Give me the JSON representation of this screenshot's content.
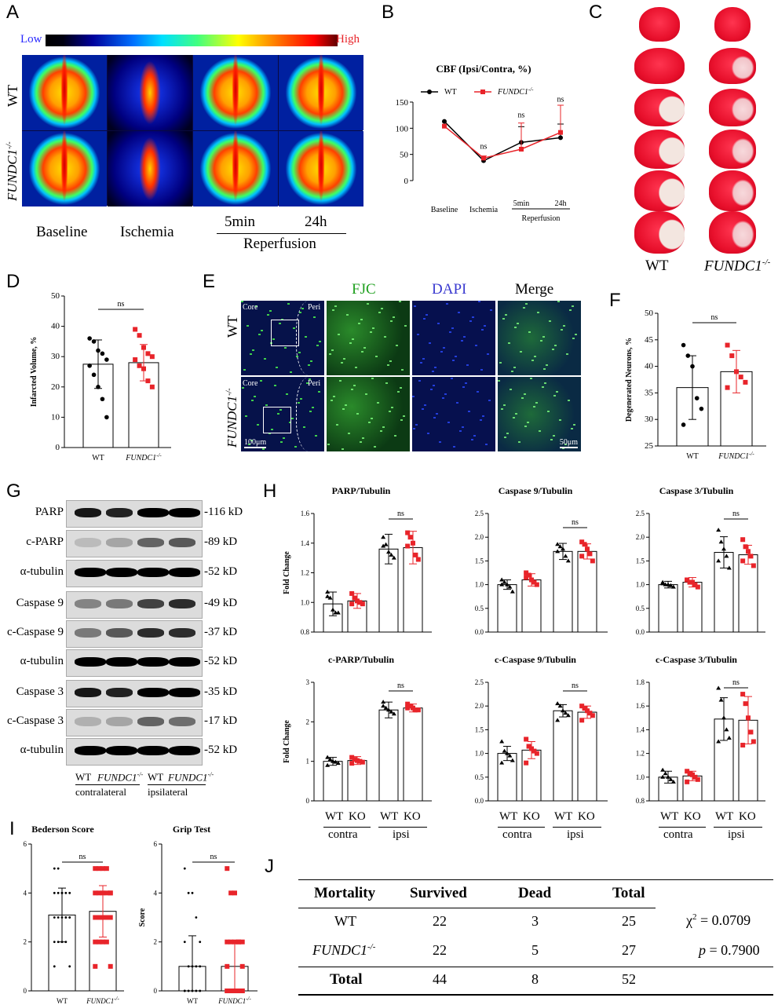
{
  "labels": {
    "A": "A",
    "B": "B",
    "C": "C",
    "D": "D",
    "E": "E",
    "F": "F",
    "G": "G",
    "H": "H",
    "I": "I",
    "J": "J"
  },
  "colors": {
    "wt": "#000000",
    "ko": "#e8242a",
    "table_rule": "#000000"
  },
  "panelA": {
    "low": "Low",
    "high": "High",
    "row_labels": [
      "WT",
      "FUNDC1"
    ],
    "row_sup": "-/-",
    "col_labels": [
      "Baseline",
      "Ischemia",
      "5min",
      "24h"
    ],
    "group_label": "Reperfusion"
  },
  "panelC": {
    "labels": [
      "WT",
      "FUNDC1"
    ],
    "sup": "-/-"
  },
  "panelE": {
    "headers": [
      "FJC",
      "DAPI",
      "Merge"
    ],
    "row_labels": [
      "WT",
      "FUNDC1"
    ],
    "row_sup": "-/-",
    "core": "Core",
    "peri": "Peri",
    "scale_left": "100μm",
    "scale_right": "50μm"
  },
  "panelG": {
    "bands": [
      {
        "name": "PARP",
        "kd": "-116 kD"
      },
      {
        "name": "c-PARP",
        "kd": "-89 kD"
      },
      {
        "name": "α-tubulin",
        "kd": "-52 kD"
      },
      {
        "name": "Caspase 9",
        "kd": "-49 kD"
      },
      {
        "name": "c-Caspase 9",
        "kd": "-37 kD"
      },
      {
        "name": "α-tubulin",
        "kd": "-52 kD"
      },
      {
        "name": "Caspase 3",
        "kd": "-35 kD"
      },
      {
        "name": "c-Caspase 3",
        "kd": "-17 kD"
      },
      {
        "name": "α-tubulin",
        "kd": "-52 kD"
      }
    ],
    "lane_labels": [
      "WT",
      "FUNDC1",
      "WT",
      "FUNDC1"
    ],
    "lane_sup": "-/-",
    "group_labels": [
      "contralateral",
      "ipsilateral"
    ]
  },
  "panelJ": {
    "header": [
      "Mortality",
      "Survived",
      "Dead",
      "Total"
    ],
    "rows": [
      {
        "label": "WT",
        "survived": "22",
        "dead": "3",
        "total": "25"
      },
      {
        "label": "FUNDC1",
        "survived": "22",
        "dead": "5",
        "total": "27"
      }
    ],
    "row_sup": "-/-",
    "total": {
      "label": "Total",
      "survived": "44",
      "dead": "8",
      "total": "52"
    },
    "chi_label": "χ",
    "chi_value": "= 0.0709",
    "p_label": "p",
    "p_value": "= 0.7900"
  },
  "chart_data": [
    {
      "id": "B",
      "type": "line",
      "title": "CBF (Ipsi/Contra, %)",
      "categories": [
        "Baseline",
        "Ischemia",
        "5min",
        "24h"
      ],
      "group_label": "Reperfusion",
      "ylim": [
        0,
        150
      ],
      "yticks": [
        0,
        50,
        100,
        150
      ],
      "series": [
        {
          "name": "WT",
          "values": [
            113,
            38,
            73,
            82
          ],
          "err": [
            0,
            0,
            30,
            26
          ]
        },
        {
          "name": "FUNDC1",
          "values": [
            104,
            43,
            60,
            92
          ],
          "err": [
            0,
            4,
            50,
            52
          ]
        }
      ],
      "annotations": [
        "ns",
        "ns",
        "ns"
      ]
    },
    {
      "id": "D",
      "type": "bar",
      "ylabel": "Infarcted Volume, %",
      "categories": [
        "WT",
        "FUNDC1"
      ],
      "ylim": [
        0,
        50
      ],
      "yticks": [
        0,
        10,
        20,
        30,
        40,
        50
      ],
      "values": [
        27.5,
        28
      ],
      "err": [
        8,
        6
      ],
      "points": [
        [
          36,
          35,
          32,
          31,
          29,
          27,
          24,
          20,
          16,
          10
        ],
        [
          39,
          37,
          33,
          31,
          30,
          29,
          27,
          26,
          22,
          20
        ]
      ],
      "annotation": "ns"
    },
    {
      "id": "F",
      "type": "bar",
      "ylabel": "Degenerated Neurons, %",
      "categories": [
        "WT",
        "FUNDC1"
      ],
      "ylim": [
        25,
        50
      ],
      "yticks": [
        25,
        30,
        35,
        40,
        45,
        50
      ],
      "values": [
        36,
        39
      ],
      "err": [
        6,
        4
      ],
      "points": [
        [
          44,
          42,
          40,
          34,
          32,
          29
        ],
        [
          44,
          42,
          39,
          38,
          37,
          36
        ]
      ],
      "annotation": "ns"
    },
    {
      "id": "H1",
      "type": "bar",
      "title": "PARP/Tubulin",
      "ylabel": "Fold Change",
      "ylim": [
        0.8,
        1.6
      ],
      "yticks": [
        0.8,
        1.0,
        1.2,
        1.4,
        1.6
      ],
      "values": [
        0.99,
        1.01,
        1.36,
        1.37
      ],
      "err": [
        0.08,
        0.05,
        0.1,
        0.11
      ],
      "points": [
        [
          1.07,
          1.03,
          0.95,
          0.93,
          0.93,
          1.04
        ],
        [
          1.06,
          1.03,
          1.01,
          1.0,
          0.99,
          0.99
        ],
        [
          1.44,
          1.39,
          1.34,
          1.32,
          1.3,
          1.38
        ],
        [
          1.47,
          1.44,
          1.4,
          1.32,
          1.29,
          1.38
        ]
      ],
      "annotation": "ns"
    },
    {
      "id": "H2",
      "type": "bar",
      "title": "Caspase 9/Tubulin",
      "ylim": [
        0,
        2.5
      ],
      "yticks": [
        0.0,
        0.5,
        1.0,
        1.5,
        2.0,
        2.5
      ],
      "values": [
        1.0,
        1.1,
        1.7,
        1.7
      ],
      "err": [
        0.1,
        0.13,
        0.17,
        0.16
      ],
      "points": [
        [
          1.1,
          1.05,
          1.0,
          0.95,
          0.85,
          1.0
        ],
        [
          1.25,
          1.2,
          1.1,
          1.05,
          1.0,
          1.15
        ],
        [
          1.85,
          1.8,
          1.75,
          1.6,
          1.5,
          1.7
        ],
        [
          1.9,
          1.85,
          1.75,
          1.65,
          1.5,
          1.6
        ]
      ],
      "annotation": "ns"
    },
    {
      "id": "H3",
      "type": "bar",
      "title": "Caspase 3/Tubulin",
      "ylim": [
        0,
        2.5
      ],
      "yticks": [
        0.0,
        0.5,
        1.0,
        1.5,
        2.0,
        2.5
      ],
      "values": [
        1.0,
        1.05,
        1.68,
        1.63
      ],
      "err": [
        0.07,
        0.1,
        0.33,
        0.2
      ],
      "points": [
        [
          1.05,
          1.0,
          1.0,
          0.98,
          0.95,
          1.02
        ],
        [
          1.1,
          1.05,
          1.05,
          1.0,
          0.95,
          1.1
        ],
        [
          2.15,
          1.9,
          1.75,
          1.6,
          1.35,
          1.5
        ],
        [
          1.95,
          1.8,
          1.7,
          1.6,
          1.4,
          1.5
        ]
      ],
      "annotation": "ns"
    },
    {
      "id": "H4",
      "type": "bar",
      "title": "c-PARP/Tubulin",
      "ylabel": "Fold Change",
      "ylim": [
        0,
        3
      ],
      "yticks": [
        0,
        1,
        2,
        3
      ],
      "values": [
        1.0,
        1.02,
        2.3,
        2.35
      ],
      "err": [
        0.1,
        0.1,
        0.2,
        0.1
      ],
      "points": [
        [
          1.1,
          1.05,
          1.0,
          0.98,
          0.95,
          0.9
        ],
        [
          1.1,
          1.05,
          1.02,
          1.0,
          0.98,
          0.95
        ],
        [
          2.5,
          2.35,
          2.3,
          2.25,
          2.2,
          2.4
        ],
        [
          2.45,
          2.4,
          2.35,
          2.3,
          2.3,
          2.35
        ]
      ],
      "annotation": "ns"
    },
    {
      "id": "H5",
      "type": "bar",
      "title": "c-Caspase 9/Tubulin",
      "ylim": [
        0,
        2.5
      ],
      "yticks": [
        0.0,
        0.5,
        1.0,
        1.5,
        2.0,
        2.5
      ],
      "values": [
        1.0,
        1.07,
        1.9,
        1.87
      ],
      "err": [
        0.15,
        0.18,
        0.13,
        0.13
      ],
      "points": [
        [
          1.25,
          1.05,
          1.0,
          0.95,
          0.85,
          0.8
        ],
        [
          1.3,
          1.15,
          1.1,
          1.05,
          1.0,
          0.8
        ],
        [
          2.05,
          2.0,
          1.9,
          1.85,
          1.8,
          1.7
        ],
        [
          2.0,
          1.95,
          1.9,
          1.85,
          1.8,
          1.7
        ]
      ],
      "annotation": "ns"
    },
    {
      "id": "H6",
      "type": "bar",
      "title": "c-Caspase 3/Tubulin",
      "ylim": [
        0.8,
        1.8
      ],
      "yticks": [
        0.8,
        1.0,
        1.2,
        1.4,
        1.6,
        1.8
      ],
      "values": [
        1.0,
        1.01,
        1.49,
        1.48
      ],
      "err": [
        0.05,
        0.04,
        0.18,
        0.2
      ],
      "points": [
        [
          1.06,
          1.03,
          1.0,
          0.98,
          0.96,
          1.0
        ],
        [
          1.05,
          1.03,
          1.02,
          1.0,
          0.98,
          0.96
        ],
        [
          1.75,
          1.65,
          1.5,
          1.4,
          1.33,
          1.3
        ],
        [
          1.7,
          1.62,
          1.5,
          1.38,
          1.3,
          1.27
        ]
      ],
      "annotation": "ns"
    },
    {
      "id": "I1",
      "type": "bar",
      "title": "Bederson Score",
      "categories": [
        "WT",
        "FUNDC1"
      ],
      "ylim": [
        0,
        6
      ],
      "yticks": [
        0,
        2,
        4,
        6
      ],
      "values": [
        3.1,
        3.25
      ],
      "err": [
        1.1,
        1.05
      ],
      "points": [
        [
          5,
          5,
          4,
          4,
          4,
          4,
          4,
          4,
          3,
          3,
          3,
          3,
          3,
          3,
          3,
          2,
          2,
          2,
          2,
          1,
          1
        ],
        [
          5,
          5,
          5,
          5,
          4,
          4,
          4,
          4,
          4,
          4,
          3,
          3,
          3,
          3,
          3,
          2,
          2,
          2,
          2,
          1,
          1
        ]
      ],
      "annotation": "ns"
    },
    {
      "id": "I2",
      "type": "bar",
      "title": "Grip Test",
      "ylabel": "Score",
      "categories": [
        "WT",
        "FUNDC1"
      ],
      "ylim": [
        0,
        6
      ],
      "yticks": [
        0,
        2,
        4,
        6
      ],
      "values": [
        1.0,
        1.0
      ],
      "err": [
        1.25,
        1.0
      ],
      "points": [
        [
          5,
          4,
          4,
          3,
          2,
          2,
          1,
          1,
          1,
          1,
          0,
          0,
          0,
          0,
          0,
          0,
          0,
          0,
          0,
          0,
          0
        ],
        [
          5,
          4,
          4,
          2,
          2,
          2,
          2,
          2,
          2,
          1,
          1,
          0,
          0,
          0,
          0,
          0,
          0,
          0,
          0,
          0,
          0
        ]
      ],
      "annotation": "ns"
    }
  ],
  "axis_text": {
    "wt": "WT",
    "fundc1": "FUNDC1",
    "sup": "-/-",
    "ko": "KO",
    "contra": "contra",
    "ipsi": "ipsi",
    "ns": "ns"
  }
}
